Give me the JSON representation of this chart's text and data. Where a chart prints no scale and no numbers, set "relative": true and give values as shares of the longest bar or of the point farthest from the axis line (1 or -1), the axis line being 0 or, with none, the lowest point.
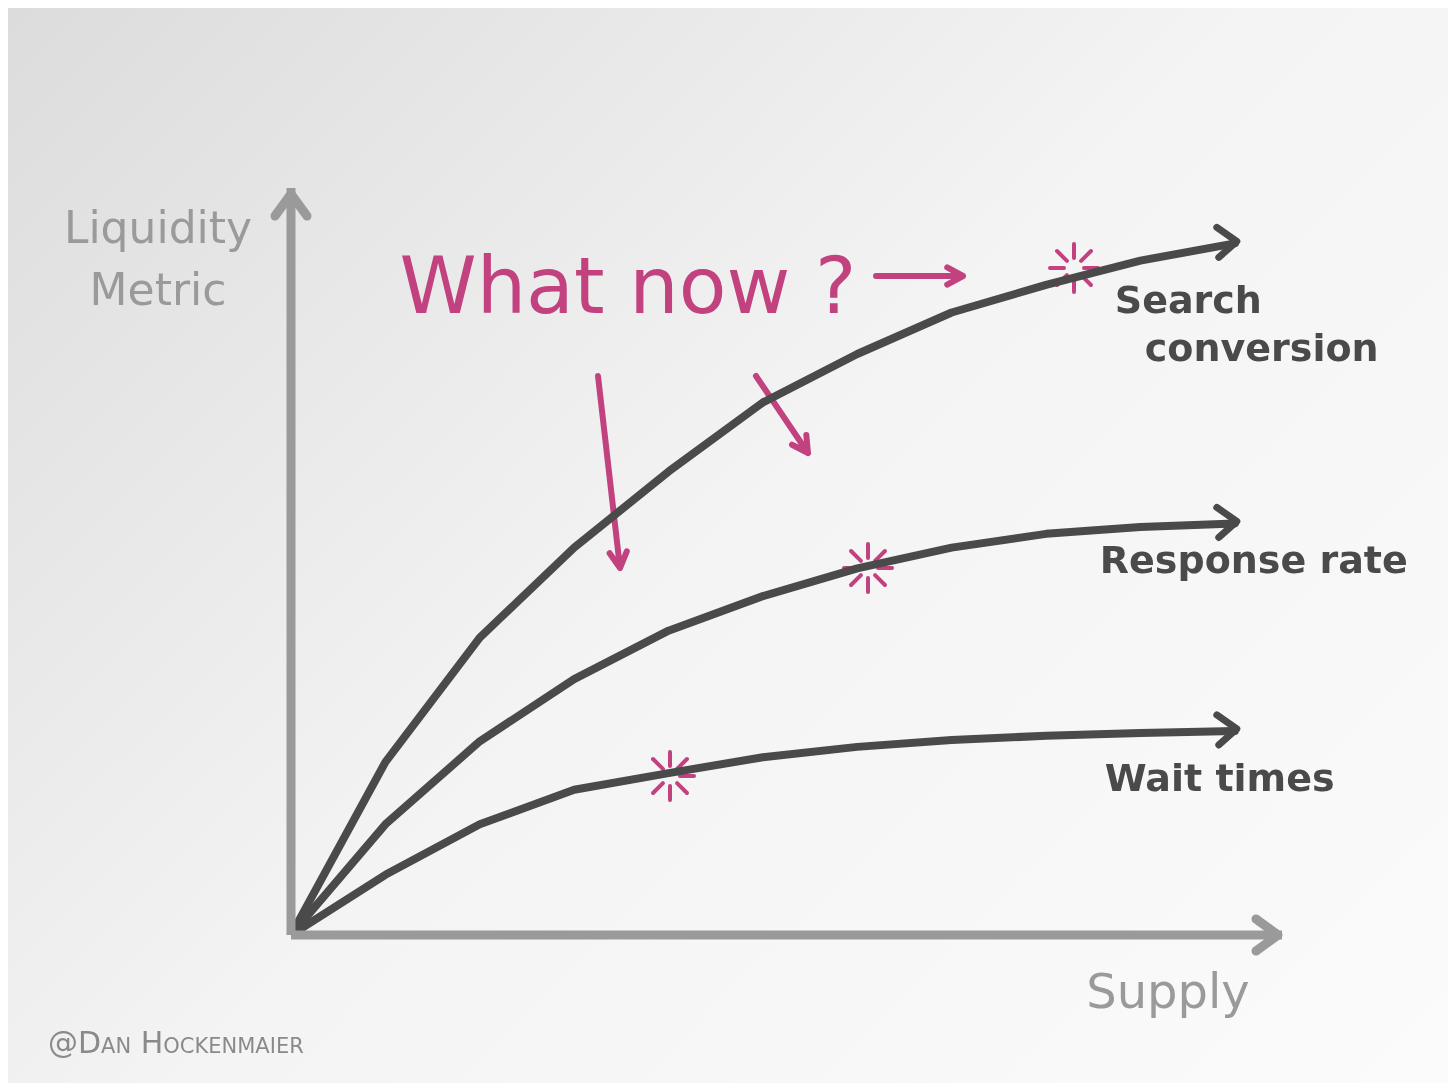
{
  "chart_data": {
    "type": "line",
    "relative": true,
    "xlabel": "Supply",
    "ylabel": "Liquidity Metric",
    "grid": false,
    "legend": false,
    "marker": "none",
    "line_style": "solid",
    "annotations": [
      "What now ?",
      "@Dan Hockenmaier"
    ],
    "categories": [
      null,
      null,
      null,
      null,
      null,
      null,
      null,
      null,
      null,
      null,
      null
    ],
    "series": [
      {
        "name": "Search conversion",
        "color": "#4a4a4a",
        "values": [
          0,
          0.25,
          0.43,
          0.56,
          0.67,
          0.77,
          0.84,
          0.9,
          0.94,
          0.975,
          1
        ]
      },
      {
        "name": "Response rate",
        "color": "#4a4a4a",
        "values": [
          0,
          0.16,
          0.28,
          0.37,
          0.44,
          0.49,
          0.53,
          0.56,
          0.58,
          0.59,
          0.595
        ]
      },
      {
        "name": "Wait times",
        "color": "#4a4a4a",
        "values": [
          0,
          0.087,
          0.16,
          0.21,
          0.234,
          0.257,
          0.272,
          0.282,
          0.288,
          0.292,
          0.295
        ]
      }
    ]
  }
}
